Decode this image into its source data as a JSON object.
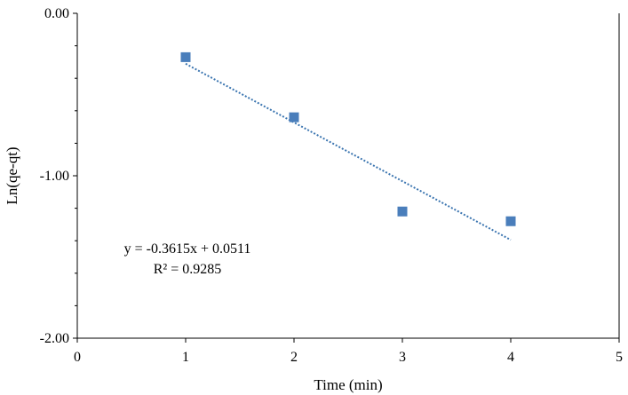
{
  "chart_data": {
    "type": "scatter",
    "title": "",
    "xlabel": "Time (min)",
    "ylabel": "Ln(qe-qt)",
    "xlim": [
      0,
      5
    ],
    "ylim": [
      -2,
      0
    ],
    "x_ticks": [
      "0",
      "1",
      "2",
      "3",
      "4",
      "5"
    ],
    "y_ticks": [
      "0.00",
      "-1.00",
      "-2.00"
    ],
    "grid": false,
    "legend": "none",
    "series": [
      {
        "x": [
          1,
          2,
          3,
          4
        ],
        "y": [
          -0.27,
          -0.64,
          -1.22,
          -1.28
        ],
        "color": "#4a7ebb",
        "marker": "square"
      }
    ],
    "trendline": {
      "type": "linear",
      "slope": -0.3615,
      "intercept": 0.0511,
      "x_range": [
        1,
        4
      ],
      "color": "#3b75b0",
      "style": "dotted"
    },
    "annotations": {
      "equation": "y = -0.3615x + 0.0511",
      "r_squared": "R² = 0.9285"
    }
  }
}
